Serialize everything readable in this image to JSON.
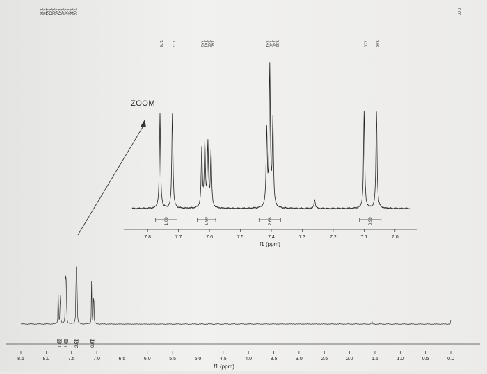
{
  "zoom_label": "ZOOM",
  "chart_data": [
    {
      "type": "line",
      "title": "",
      "xlabel": "f1 (ppm)",
      "xlim": [
        8.5,
        0.0
      ],
      "x_ticks": [
        "8.5",
        "8.0",
        "7.5",
        "7.0",
        "6.5",
        "6.0",
        "5.5",
        "5.0",
        "4.5",
        "4.0",
        "3.5",
        "3.0",
        "2.5",
        "2.0",
        "1.5",
        "1.0",
        "0.5",
        "0.0"
      ],
      "peaks": [
        {
          "ppm": 7.76,
          "height": 0.66
        },
        {
          "ppm": 7.72,
          "height": 0.66
        },
        {
          "ppm": 7.62,
          "height": 0.52
        },
        {
          "ppm": 7.61,
          "height": 0.55
        },
        {
          "ppm": 7.6,
          "height": 0.57
        },
        {
          "ppm": 7.41,
          "height": 0.6
        },
        {
          "ppm": 7.4,
          "height": 1.0
        },
        {
          "ppm": 7.39,
          "height": 0.62
        },
        {
          "ppm": 7.1,
          "height": 0.68
        },
        {
          "ppm": 7.06,
          "height": 0.68
        },
        {
          "ppm": 1.56,
          "height": 0.04
        },
        {
          "ppm": 0.0,
          "height": 0.05
        }
      ],
      "integrals": [
        {
          "value": "1.00",
          "from": 7.78,
          "to": 7.7
        },
        {
          "value": "1.00",
          "from": 7.64,
          "to": 7.57
        },
        {
          "value": "2.58",
          "from": 7.44,
          "to": 7.36
        },
        {
          "value": "0.93",
          "from": 7.12,
          "to": 7.04
        }
      ],
      "peak_labels_cluster": [
        "7.76",
        "7.72",
        "7.62",
        "7.61",
        "7.60",
        "7.60",
        "7.41",
        "7.40",
        "7.40",
        "7.39",
        "7.10",
        "7.06"
      ],
      "peak_label_tms": "0.00"
    },
    {
      "type": "line",
      "title": "",
      "xlabel": "f1 (ppm)",
      "xlim": [
        7.85,
        6.95
      ],
      "x_ticks": [
        "7.8",
        "7.7",
        "7.6",
        "7.5",
        "7.4",
        "7.3",
        "7.2",
        "7.1",
        "7.0"
      ],
      "peaks": [
        {
          "ppm": 7.76,
          "height": 0.68
        },
        {
          "ppm": 7.72,
          "height": 0.68
        },
        {
          "ppm": 7.625,
          "height": 0.42
        },
        {
          "ppm": 7.615,
          "height": 0.45
        },
        {
          "ppm": 7.605,
          "height": 0.45
        },
        {
          "ppm": 7.595,
          "height": 0.4
        },
        {
          "ppm": 7.415,
          "height": 0.55
        },
        {
          "ppm": 7.405,
          "height": 1.0
        },
        {
          "ppm": 7.395,
          "height": 0.62
        },
        {
          "ppm": 7.1,
          "height": 0.7
        },
        {
          "ppm": 7.06,
          "height": 0.7
        },
        {
          "ppm": 7.26,
          "height": 0.07
        }
      ],
      "integrals": [
        {
          "value": "1.00",
          "from": 7.775,
          "to": 7.705
        },
        {
          "value": "1.90",
          "from": 7.64,
          "to": 7.58
        },
        {
          "value": "2.68",
          "from": 7.44,
          "to": 7.37
        },
        {
          "value": "0.99",
          "from": 7.115,
          "to": 7.045
        }
      ],
      "peak_label_groups": [
        {
          "labels": [
            "7.76"
          ],
          "ppm": 7.76
        },
        {
          "labels": [
            "7.72"
          ],
          "ppm": 7.72
        },
        {
          "labels": [
            "7.62",
            "7.61",
            "7.60",
            "7.60"
          ],
          "ppm": 7.61
        },
        {
          "labels": [
            "7.41",
            "7.40",
            "7.40",
            "7.39"
          ],
          "ppm": 7.4
        },
        {
          "labels": [
            "7.10"
          ],
          "ppm": 7.1
        },
        {
          "labels": [
            "7.06"
          ],
          "ppm": 7.06
        }
      ]
    }
  ]
}
